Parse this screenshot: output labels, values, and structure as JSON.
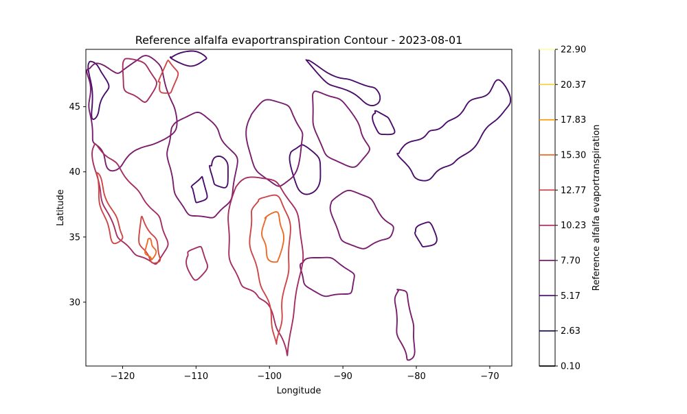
{
  "chart_data": {
    "type": "contour",
    "title": "Reference alfalfa evaportranspiration Contour - 2023-08-01",
    "xlabel": "Longitude",
    "ylabel": "Latitude",
    "xlim": [
      -125,
      -67
    ],
    "ylim": [
      25.1,
      49.4
    ],
    "xticks": [
      -120,
      -110,
      -100,
      -90,
      -80,
      -70
    ],
    "yticks": [
      30,
      35,
      40,
      45
    ],
    "grid": false,
    "colorbar": {
      "label": "Reference alfalfa evaportranspiration",
      "levels": [
        0.1,
        2.63,
        5.17,
        7.7,
        10.23,
        12.77,
        15.3,
        17.83,
        20.37,
        22.9
      ],
      "tick_labels": [
        "0.10",
        "2.63",
        "5.17",
        "7.70",
        "10.23",
        "12.77",
        "15.30",
        "17.83",
        "20.37",
        "22.90"
      ],
      "colors": [
        "#000004",
        "#1b0c41",
        "#4a0c6b",
        "#781c6d",
        "#a52c60",
        "#cf4446",
        "#ed6925",
        "#fb9b06",
        "#f7d13d",
        "#fcffa4"
      ]
    },
    "contours": [
      {
        "level": 5.17,
        "rings": [
          [
            [
              -124.5,
              48.5
            ],
            [
              -123.0,
              47.8
            ],
            [
              -122.0,
              46.5
            ],
            [
              -123.2,
              45.0
            ],
            [
              -124.0,
              44.0
            ],
            [
              -124.3,
              46.5
            ]
          ],
          [
            [
              -113.5,
              48.8
            ],
            [
              -111.0,
              48.2
            ],
            [
              -108.5,
              48.6
            ],
            [
              -110.0,
              49.2
            ]
          ],
          [
            [
              -97.0,
              41.5
            ],
            [
              -95.5,
              42.0
            ],
            [
              -93.5,
              41.2
            ],
            [
              -93.0,
              39.5
            ],
            [
              -95.0,
              38.2
            ],
            [
              -96.8,
              39.6
            ]
          ],
          [
            [
              -108.0,
              40.5
            ],
            [
              -106.5,
              41.2
            ],
            [
              -105.5,
              40.0
            ],
            [
              -106.2,
              38.8
            ],
            [
              -107.6,
              39.2
            ]
          ],
          [
            [
              -110.5,
              38.8
            ],
            [
              -109.2,
              39.6
            ],
            [
              -108.6,
              38.2
            ],
            [
              -109.8,
              37.6
            ]
          ],
          [
            [
              -95.0,
              48.6
            ],
            [
              -92.0,
              47.6
            ],
            [
              -89.0,
              47.0
            ],
            [
              -86.5,
              46.6
            ],
            [
              -85.0,
              46.0
            ],
            [
              -86.0,
              45.0
            ],
            [
              -88.5,
              46.0
            ],
            [
              -92.0,
              46.8
            ]
          ],
          [
            [
              -85.5,
              44.6
            ],
            [
              -84.0,
              44.2
            ],
            [
              -83.0,
              43.2
            ],
            [
              -84.5,
              42.8
            ],
            [
              -85.8,
              43.6
            ]
          ],
          [
            [
              -82.5,
              41.5
            ],
            [
              -80.5,
              42.3
            ],
            [
              -78.5,
              42.9
            ],
            [
              -77.0,
              43.4
            ],
            [
              -75.0,
              44.0
            ],
            [
              -73.0,
              45.2
            ],
            [
              -70.5,
              46.0
            ],
            [
              -68.5,
              47.0
            ],
            [
              -67.2,
              45.2
            ],
            [
              -69.0,
              44.2
            ],
            [
              -71.0,
              42.8
            ],
            [
              -73.5,
              41.2
            ],
            [
              -75.5,
              40.6
            ],
            [
              -77.5,
              39.8
            ],
            [
              -79.5,
              39.3
            ],
            [
              -81.0,
              40.3
            ]
          ],
          [
            [
              -80.0,
              35.5
            ],
            [
              -78.5,
              36.2
            ],
            [
              -77.2,
              35.0
            ],
            [
              -78.5,
              34.2
            ],
            [
              -79.6,
              34.6
            ]
          ]
        ]
      },
      {
        "level": 7.7,
        "rings": [
          [
            [
              -124.6,
              48.0
            ],
            [
              -122.5,
              48.2
            ],
            [
              -120.5,
              47.5
            ],
            [
              -118.5,
              48.5
            ],
            [
              -116.0,
              48.8
            ],
            [
              -114.5,
              47.5
            ],
            [
              -113.5,
              45.5
            ],
            [
              -112.5,
              44.0
            ],
            [
              -114.0,
              42.5
            ],
            [
              -117.0,
              42.0
            ],
            [
              -119.5,
              41.0
            ],
            [
              -121.5,
              40.0
            ],
            [
              -122.8,
              41.5
            ],
            [
              -124.0,
              42.5
            ],
            [
              -124.4,
              44.5
            ],
            [
              -124.5,
              46.5
            ]
          ],
          [
            [
              -113.0,
              43.5
            ],
            [
              -110.5,
              44.5
            ],
            [
              -108.0,
              44.0
            ],
            [
              -106.5,
              42.5
            ],
            [
              -104.5,
              41.0
            ],
            [
              -105.0,
              38.5
            ],
            [
              -106.5,
              37.0
            ],
            [
              -108.5,
              36.5
            ],
            [
              -111.0,
              36.8
            ],
            [
              -112.5,
              38.0
            ],
            [
              -113.5,
              40.0
            ],
            [
              -113.8,
              42.0
            ]
          ],
          [
            [
              -102.5,
              44.5
            ],
            [
              -100.0,
              45.5
            ],
            [
              -97.5,
              45.0
            ],
            [
              -96.0,
              43.5
            ],
            [
              -95.5,
              42.0
            ],
            [
              -97.0,
              39.5
            ],
            [
              -99.0,
              39.0
            ],
            [
              -101.5,
              40.0
            ],
            [
              -103.0,
              42.0
            ]
          ],
          [
            [
              -94.0,
              46.0
            ],
            [
              -91.5,
              45.8
            ],
            [
              -89.0,
              44.8
            ],
            [
              -87.5,
              43.0
            ],
            [
              -86.5,
              41.8
            ],
            [
              -88.0,
              40.5
            ],
            [
              -91.0,
              40.8
            ],
            [
              -93.0,
              42.0
            ],
            [
              -94.0,
              44.0
            ]
          ],
          [
            [
              -91.5,
              37.8
            ],
            [
              -89.0,
              38.5
            ],
            [
              -86.5,
              38.0
            ],
            [
              -84.5,
              36.5
            ],
            [
              -83.0,
              35.5
            ],
            [
              -84.5,
              34.8
            ],
            [
              -87.0,
              34.2
            ],
            [
              -89.5,
              34.5
            ],
            [
              -91.0,
              35.8
            ]
          ],
          [
            [
              -95.5,
              33.0
            ],
            [
              -93.0,
              33.5
            ],
            [
              -90.5,
              33.0
            ],
            [
              -88.5,
              32.0
            ],
            [
              -89.0,
              30.8
            ],
            [
              -91.5,
              30.5
            ],
            [
              -94.0,
              30.8
            ],
            [
              -95.5,
              31.8
            ]
          ],
          [
            [
              -82.5,
              31.0
            ],
            [
              -81.2,
              30.5
            ],
            [
              -80.6,
              28.5
            ],
            [
              -80.2,
              26.8
            ],
            [
              -80.8,
              25.5
            ],
            [
              -81.6,
              26.2
            ],
            [
              -82.6,
              27.8
            ],
            [
              -82.8,
              29.8
            ]
          ]
        ]
      },
      {
        "level": 10.23,
        "rings": [
          [
            [
              -124.0,
              42.0
            ],
            [
              -122.0,
              41.2
            ],
            [
              -120.0,
              40.0
            ],
            [
              -118.0,
              38.5
            ],
            [
              -116.0,
              37.2
            ],
            [
              -114.5,
              35.8
            ],
            [
              -114.0,
              34.2
            ],
            [
              -115.5,
              33.0
            ],
            [
              -117.5,
              33.5
            ],
            [
              -119.5,
              34.3
            ],
            [
              -121.0,
              35.5
            ],
            [
              -122.5,
              37.5
            ],
            [
              -123.5,
              39.5
            ]
          ],
          [
            [
              -119.5,
              48.7
            ],
            [
              -117.0,
              48.2
            ],
            [
              -115.5,
              47.0
            ],
            [
              -116.5,
              45.5
            ],
            [
              -118.5,
              45.8
            ],
            [
              -120.0,
              46.8
            ]
          ],
          [
            [
              -104.5,
              39.0
            ],
            [
              -101.0,
              39.6
            ],
            [
              -98.5,
              38.8
            ],
            [
              -96.5,
              37.0
            ],
            [
              -95.5,
              34.5
            ],
            [
              -96.0,
              31.5
            ],
            [
              -97.0,
              28.5
            ],
            [
              -97.5,
              26.0
            ],
            [
              -98.5,
              27.5
            ],
            [
              -100.0,
              29.5
            ],
            [
              -101.5,
              30.5
            ],
            [
              -103.0,
              31.0
            ],
            [
              -104.5,
              32.0
            ],
            [
              -105.5,
              34.0
            ],
            [
              -105.5,
              36.5
            ]
          ],
          [
            [
              -111.0,
              33.8
            ],
            [
              -109.5,
              34.2
            ],
            [
              -108.5,
              33.0
            ],
            [
              -109.5,
              31.8
            ],
            [
              -111.0,
              32.2
            ]
          ]
        ]
      },
      {
        "level": 12.77,
        "rings": [
          [
            [
              -101.5,
              37.8
            ],
            [
              -99.5,
              38.2
            ],
            [
              -97.8,
              37.2
            ],
            [
              -97.2,
              35.0
            ],
            [
              -97.5,
              32.5
            ],
            [
              -98.2,
              30.0
            ],
            [
              -98.6,
              27.8
            ],
            [
              -99.2,
              26.8
            ],
            [
              -99.6,
              28.5
            ],
            [
              -100.5,
              30.5
            ],
            [
              -101.8,
              32.5
            ],
            [
              -102.6,
              34.8
            ],
            [
              -102.4,
              36.8
            ]
          ],
          [
            [
              -123.5,
              40.0
            ],
            [
              -122.5,
              38.5
            ],
            [
              -121.0,
              36.5
            ],
            [
              -120.0,
              35.2
            ],
            [
              -121.0,
              34.5
            ],
            [
              -122.2,
              36.0
            ],
            [
              -123.2,
              38.2
            ]
          ],
          [
            [
              -117.5,
              36.5
            ],
            [
              -116.0,
              35.2
            ],
            [
              -115.0,
              34.0
            ],
            [
              -115.2,
              33.0
            ],
            [
              -116.4,
              33.4
            ],
            [
              -117.6,
              34.6
            ]
          ],
          [
            [
              -115.0,
              47.0
            ],
            [
              -113.8,
              48.5
            ],
            [
              -112.6,
              47.6
            ],
            [
              -113.2,
              46.3
            ],
            [
              -114.4,
              46.0
            ]
          ]
        ]
      },
      {
        "level": 15.3,
        "rings": [
          [
            [
              -100.5,
              36.5
            ],
            [
              -99.0,
              36.8
            ],
            [
              -98.2,
              35.5
            ],
            [
              -98.5,
              33.6
            ],
            [
              -99.4,
              33.0
            ],
            [
              -100.4,
              33.8
            ],
            [
              -100.9,
              35.2
            ]
          ],
          [
            [
              -116.6,
              34.8
            ],
            [
              -115.8,
              34.4
            ],
            [
              -115.6,
              33.6
            ],
            [
              -116.2,
              33.3
            ],
            [
              -116.8,
              33.9
            ]
          ]
        ]
      }
    ]
  }
}
